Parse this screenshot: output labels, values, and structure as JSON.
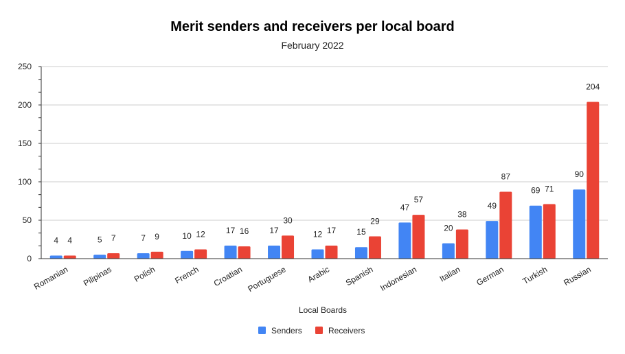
{
  "chart_data": {
    "type": "bar",
    "title": "Merit senders and receivers per local board",
    "subtitle": "February 2022",
    "xlabel": "Local Boards",
    "ylabel": "",
    "categories": [
      "Romanian",
      "Pilipinas",
      "Polish",
      "French",
      "Croatian",
      "Portuguese",
      "Arabic",
      "Spanish",
      "Indonesian",
      "Italian",
      "German",
      "Turkish",
      "Russian"
    ],
    "series": [
      {
        "name": "Senders",
        "color": "#4285f4",
        "values": [
          4,
          5,
          7,
          10,
          17,
          17,
          12,
          15,
          47,
          20,
          49,
          69,
          90
        ]
      },
      {
        "name": "Receivers",
        "color": "#ea4335",
        "values": [
          4,
          7,
          9,
          12,
          16,
          30,
          17,
          29,
          57,
          38,
          87,
          71,
          204
        ]
      }
    ],
    "ylim": [
      0,
      250
    ],
    "yticks": [
      0,
      50,
      100,
      150,
      200,
      250
    ],
    "grid": true,
    "legend_position": "bottom",
    "data_labels": true
  }
}
